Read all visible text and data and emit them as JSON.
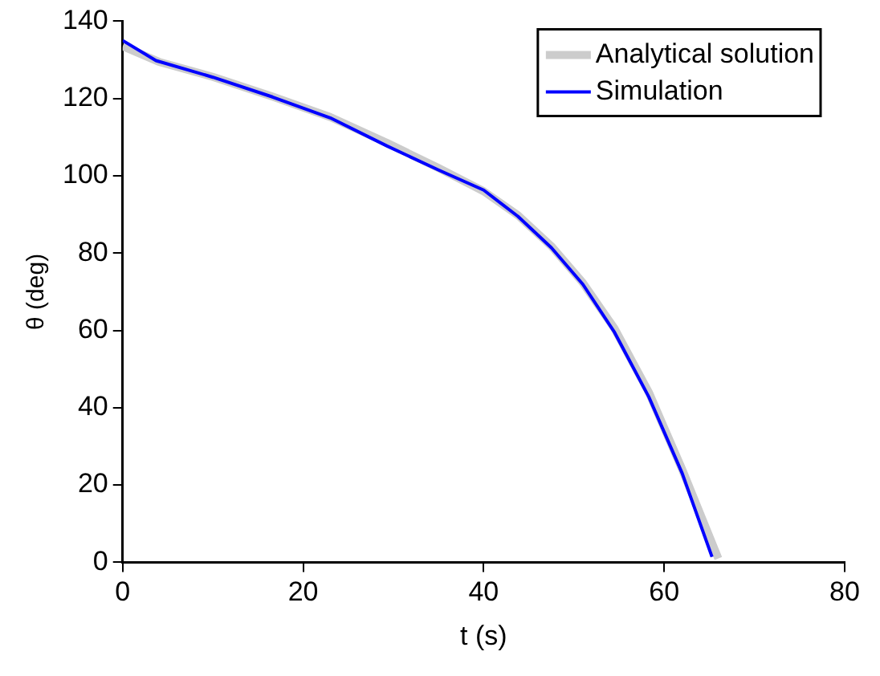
{
  "chart_data": {
    "type": "line",
    "xlabel": "t (s)",
    "ylabel": "θ (deg)",
    "xlim": [
      0,
      80
    ],
    "xticks": [
      0,
      20,
      40,
      60,
      80
    ],
    "ylim": [
      0,
      140
    ],
    "yticks": [
      0,
      20,
      40,
      60,
      80,
      100,
      120,
      140
    ],
    "grid": false,
    "legend": "top right",
    "marker": "none",
    "series": [
      {
        "name": "Analytical solution",
        "color": "#cccccc",
        "x": [
          0,
          4,
          10,
          16.6,
          23,
          29.3,
          35,
          40,
          43.8,
          47.5,
          51,
          54.5,
          58.3,
          62,
          66
        ],
        "values": [
          133.5,
          129.5,
          125.6,
          120.5,
          115.2,
          108.5,
          102,
          96,
          89.8,
          81.8,
          72.3,
          60.5,
          44,
          24,
          1
        ]
      },
      {
        "name": "Simulation",
        "color": "#0000ff",
        "x": [
          0,
          3.7,
          10,
          16.6,
          23,
          29.3,
          35,
          40,
          43.8,
          47.5,
          51,
          54.5,
          58.3,
          62,
          65.3
        ],
        "values": [
          135,
          129.8,
          125.5,
          120.4,
          115,
          107.7,
          101.5,
          96.3,
          89.5,
          81.4,
          71.9,
          59.5,
          42.8,
          23,
          1.4
        ]
      }
    ]
  }
}
